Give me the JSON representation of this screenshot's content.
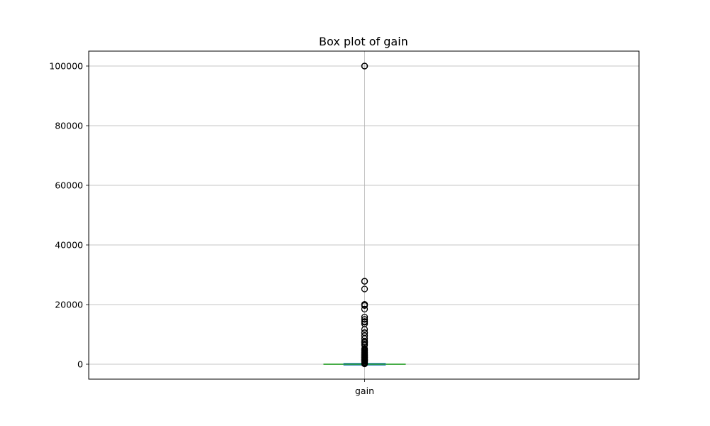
{
  "chart_data": {
    "type": "box",
    "title": "Box plot of gain",
    "xlabel": "",
    "ylabel": "",
    "categories": [
      "gain"
    ],
    "grid": true,
    "ylim": [
      -5000,
      105000
    ],
    "yticks": [
      0,
      20000,
      40000,
      60000,
      80000,
      100000
    ],
    "ytick_labels": [
      "0",
      "20000",
      "40000",
      "60000",
      "80000",
      "100000"
    ],
    "box": {
      "category": "gain",
      "q1": 0,
      "median": 0,
      "q3": 0,
      "whisker_low": 0,
      "whisker_high": 0
    },
    "outliers": [
      99999,
      99999,
      99999,
      27828,
      27828,
      27828,
      25236,
      20051,
      20051,
      19688,
      18481,
      15831,
      15024,
      15024,
      14344,
      14084,
      13550,
      11678,
      10605,
      10520,
      9562,
      8614,
      7688,
      7688,
      7298,
      7298,
      6849,
      6418,
      5178,
      5013,
      4787,
      4650,
      4386,
      4064,
      3908,
      3674,
      3464,
      3325,
      3137,
      3103,
      2964,
      2829,
      2653,
      2597,
      2407,
      2354,
      2202,
      2174,
      2105,
      1848,
      1831,
      1639,
      1506,
      1471,
      1409,
      1173,
      1086,
      991,
      914,
      594,
      401,
      114
    ],
    "colors": {
      "box": "#1f77b4",
      "median": "#2ca02c",
      "whisker": "#2ca02c",
      "grid": "#b0b0b0",
      "outlier_edge": "#000000"
    }
  }
}
